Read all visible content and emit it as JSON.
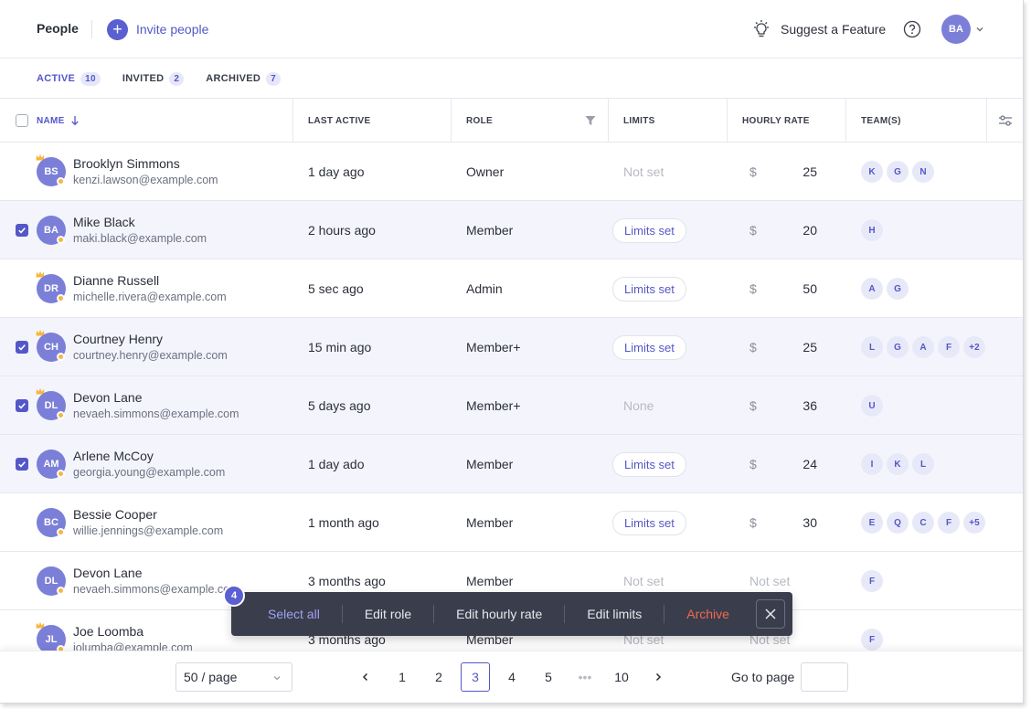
{
  "header": {
    "title": "People",
    "invite_label": "Invite people",
    "suggest_label": "Suggest a Feature",
    "user_initials": "BA"
  },
  "tabs": [
    {
      "label": "ACTIVE",
      "count": "10",
      "active": true
    },
    {
      "label": "INVITED",
      "count": "2",
      "active": false
    },
    {
      "label": "ARCHIVED",
      "count": "7",
      "active": false
    }
  ],
  "columns": {
    "name": "NAME",
    "last_active": "LAST ACTIVE",
    "role": "ROLE",
    "limits": "LIMITS",
    "hourly_rate": "HOURLY RATE",
    "teams": "TEAM(S)"
  },
  "rows": [
    {
      "initials": "BS",
      "name": "Brooklyn Simmons",
      "email": "kenzi.lawson@example.com",
      "last_active": "1 day ago",
      "role": "Owner",
      "limits": "Not set",
      "limits_style": "muted",
      "currency": "$",
      "rate": "25",
      "teams": [
        "K",
        "G",
        "N"
      ],
      "selected": false
    },
    {
      "initials": "BA",
      "name": "Mike Black",
      "email": "maki.black@example.com",
      "last_active": "2 hours ago",
      "role": "Member",
      "limits": "Limits set",
      "limits_style": "pill",
      "currency": "$",
      "rate": "20",
      "teams": [
        "H"
      ],
      "selected": true
    },
    {
      "initials": "DR",
      "name": "Dianne Russell",
      "email": "michelle.rivera@example.com",
      "last_active": "5 sec ago",
      "role": "Admin",
      "limits": "Limits set",
      "limits_style": "pill",
      "currency": "$",
      "rate": "50",
      "teams": [
        "A",
        "G"
      ],
      "selected": false
    },
    {
      "initials": "CH",
      "name": "Courtney Henry",
      "email": "courtney.henry@example.com",
      "last_active": "15 min ago",
      "role": "Member+",
      "limits": "Limits set",
      "limits_style": "pill",
      "currency": "$",
      "rate": "25",
      "teams": [
        "L",
        "G",
        "A",
        "F",
        "+2"
      ],
      "selected": true
    },
    {
      "initials": "DL",
      "name": "Devon Lane",
      "email": "nevaeh.simmons@example.com",
      "last_active": "5 days ago",
      "role": "Member+",
      "limits": "None",
      "limits_style": "muted",
      "currency": "$",
      "rate": "36",
      "teams": [
        "U"
      ],
      "selected": true
    },
    {
      "initials": "AM",
      "name": "Arlene McCoy",
      "email": "georgia.young@example.com",
      "last_active": "1 day ado",
      "role": "Member",
      "limits": "Limits set",
      "limits_style": "pill",
      "currency": "$",
      "rate": "24",
      "teams": [
        "I",
        "K",
        "L"
      ],
      "selected": true
    },
    {
      "initials": "BC",
      "name": "Bessie Cooper",
      "email": "willie.jennings@example.com",
      "last_active": "1 month ago",
      "role": "Member",
      "limits": "Limits set",
      "limits_style": "pill",
      "currency": "$",
      "rate": "30",
      "teams": [
        "E",
        "Q",
        "C",
        "F",
        "+5"
      ],
      "selected": false
    },
    {
      "initials": "DL",
      "name": "Devon Lane",
      "email": "nevaeh.simmons@example.com",
      "last_active": "3 months ago",
      "role": "Member",
      "limits": "Not set",
      "limits_style": "muted",
      "currency": "",
      "rate": "Not set",
      "teams": [
        "F"
      ],
      "selected": false
    },
    {
      "initials": "JL",
      "name": "Joe Loomba",
      "email": "jolumba@example.com",
      "last_active": "3 months ago",
      "role": "Member",
      "limits": "Not set",
      "limits_style": "muted",
      "currency": "",
      "rate": "Not set",
      "teams": [
        "F"
      ],
      "selected": false
    }
  ],
  "action_bar": {
    "count": "4",
    "select_all": "Select all",
    "edit_role": "Edit role",
    "edit_hourly_rate": "Edit hourly rate",
    "edit_limits": "Edit limits",
    "archive": "Archive"
  },
  "pagination": {
    "per_page": "50 / page",
    "pages": [
      "1",
      "2",
      "3",
      "4",
      "5",
      "•••",
      "10"
    ],
    "current": "3",
    "goto_label": "Go to page",
    "goto_value": ""
  },
  "colors": {
    "accent": "#5457c8",
    "avatar": "#7b7fd8",
    "danger": "#f06a4f",
    "status_dot": "#f6b73c"
  }
}
